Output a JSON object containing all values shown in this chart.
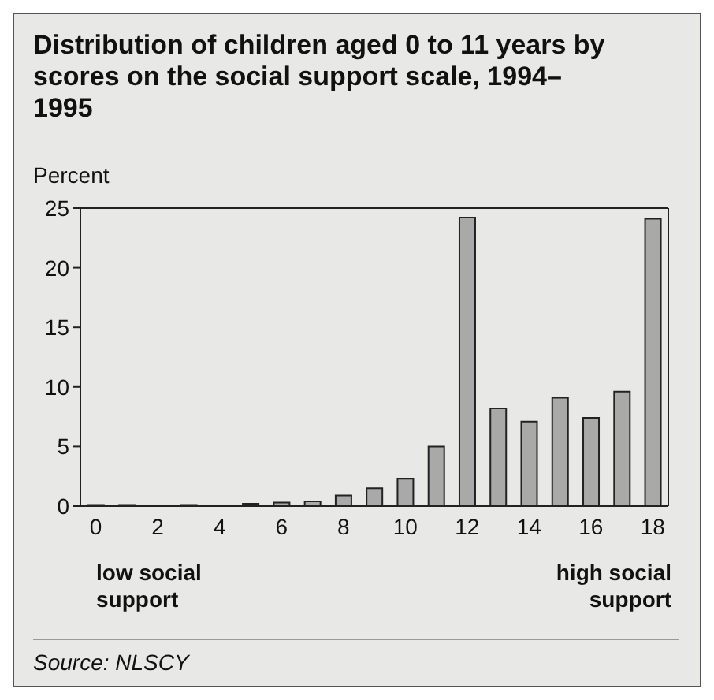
{
  "chart_data": {
    "type": "bar",
    "title": "Distribution of children aged 0 to 11 years by scores on the social support scale, 1994–1995",
    "ylabel": "Percent",
    "categories": [
      "0",
      null,
      "2",
      null,
      "4",
      null,
      "6",
      null,
      "8",
      null,
      "10",
      null,
      "12",
      null,
      "14",
      null,
      "16",
      null,
      "18"
    ],
    "values": [
      0.1,
      0.1,
      0,
      0.1,
      0,
      0.2,
      0.3,
      0.4,
      0.9,
      1.5,
      2.3,
      5,
      24.2,
      8.2,
      7.1,
      9.1,
      7.4,
      9.6,
      24.1
    ],
    "color": "#a9a9a9",
    "ylim": [
      0,
      25
    ],
    "yticks": [
      0,
      5,
      10,
      15,
      20,
      25
    ],
    "annotations": [
      "low social support",
      "high social support",
      "Source: NLSCY"
    ]
  }
}
